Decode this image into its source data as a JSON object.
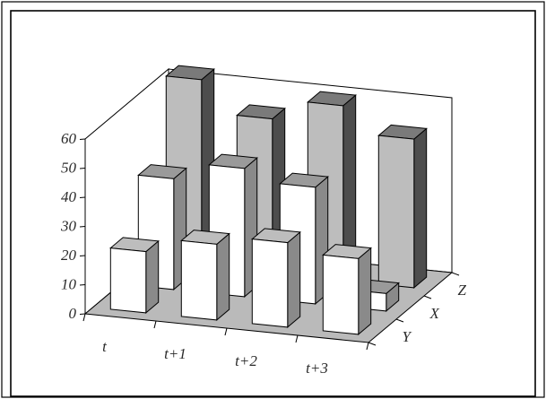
{
  "chart_data": {
    "type": "bar3d",
    "x_categories": [
      "t",
      "t+1",
      "t+2",
      "t+3"
    ],
    "depth_categories": [
      "Y",
      "X",
      "Z"
    ],
    "z_ticks": [
      "0",
      "10",
      "20",
      "30",
      "40",
      "50",
      "60"
    ],
    "zlim": [
      0,
      60
    ],
    "grid": false,
    "legend": "none",
    "series": [
      {
        "name": "Y",
        "values": [
          21,
          26,
          29,
          26
        ]
      },
      {
        "name": "X",
        "values": [
          38,
          44,
          40,
          6
        ]
      },
      {
        "name": "Z",
        "values": [
          64,
          53,
          60,
          51
        ]
      }
    ],
    "colors": {
      "Y": {
        "front": "#ffffff",
        "side": "#8a8a8a",
        "top": "#bdbdbd"
      },
      "X": {
        "front": "#ffffff",
        "side": "#8a8a8a",
        "top": "#9a9a9a"
      },
      "Z": {
        "front": "#bdbdbd",
        "side": "#4d4d4d",
        "top": "#7a7a7a"
      },
      "floor": "#bababa",
      "walls": "#ffffff",
      "lines": "#000000"
    }
  }
}
